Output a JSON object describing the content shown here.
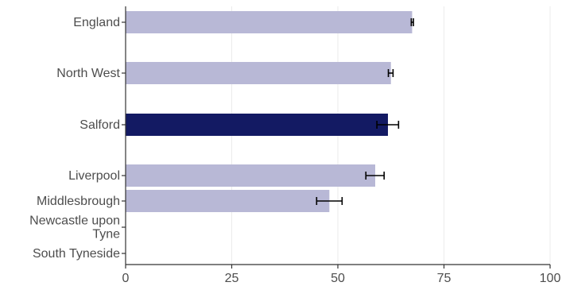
{
  "chart_data": {
    "type": "bar",
    "orientation": "horizontal",
    "categories": [
      "England",
      "North West",
      "Salford",
      "Liverpool",
      "Middlesbrough",
      "Newcastle upon Tyne",
      "South Tyneside"
    ],
    "category_label_lines": [
      [
        "England"
      ],
      [
        "North West"
      ],
      [
        "Salford"
      ],
      [
        "Liverpool"
      ],
      [
        "Middlesbrough"
      ],
      [
        "Newcastle upon",
        "Tyne"
      ],
      [
        "South Tyneside"
      ]
    ],
    "values": [
      67.5,
      62.5,
      61.8,
      58.8,
      48.0,
      null,
      null
    ],
    "error_low": [
      67.3,
      61.9,
      59.2,
      56.6,
      45.0,
      null,
      null
    ],
    "error_high": [
      67.8,
      63.0,
      64.3,
      60.9,
      51.0,
      null,
      null
    ],
    "highlight": "Salford",
    "xlim": [
      0,
      100
    ],
    "xticks": [
      0,
      25,
      50,
      75,
      100
    ],
    "xtick_labels": [
      "0",
      "25",
      "50",
      "75",
      "100"
    ],
    "title": "",
    "xlabel": "",
    "ylabel": "",
    "grid": "vertical",
    "colors": {
      "bar": "#b8b8d6",
      "highlight": "#131a63",
      "error_bar": "#000000",
      "grid": "#ebebeb",
      "axis": "#333333",
      "text": "#4d4d4d"
    }
  }
}
